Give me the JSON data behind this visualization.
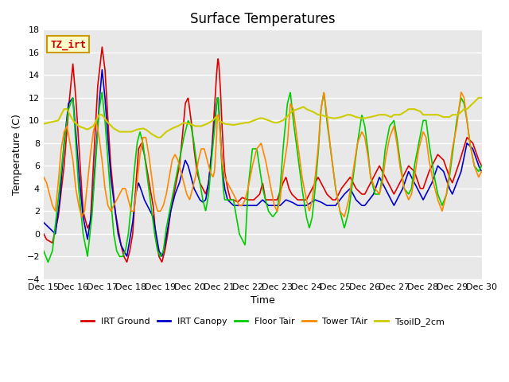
{
  "title": "Surface Temperatures",
  "xlabel": "Time",
  "ylabel": "Temperature (C)",
  "ylim": [
    -4,
    18
  ],
  "yticks": [
    -4,
    -2,
    0,
    2,
    4,
    6,
    8,
    10,
    12,
    14,
    16,
    18
  ],
  "x_labels": [
    "Dec 15",
    "Dec 16",
    "Dec 17",
    "Dec 18",
    "Dec 19",
    "Dec 20",
    "Dec 21",
    "Dec 22",
    "Dec 23",
    "Dec 24",
    "Dec 25",
    "Dec 26",
    "Dec 27",
    "Dec 28",
    "Dec 29",
    "Dec 30"
  ],
  "background_color": "#ffffff",
  "plot_bg_color": "#e8e8e8",
  "annotation_text": "TZ_irt",
  "annotation_color": "#cc0000",
  "annotation_bg": "#ffffcc",
  "annotation_border": "#cc9900",
  "series": {
    "IRT Ground": {
      "color": "#dd0000",
      "lw": 1.2
    },
    "IRT Canopy": {
      "color": "#0000cc",
      "lw": 1.2
    },
    "Floor Tair": {
      "color": "#00cc00",
      "lw": 1.2
    },
    "Tower TAir": {
      "color": "#ff8800",
      "lw": 1.2
    },
    "TsoilD_2cm": {
      "color": "#cccc00",
      "lw": 1.5
    }
  }
}
